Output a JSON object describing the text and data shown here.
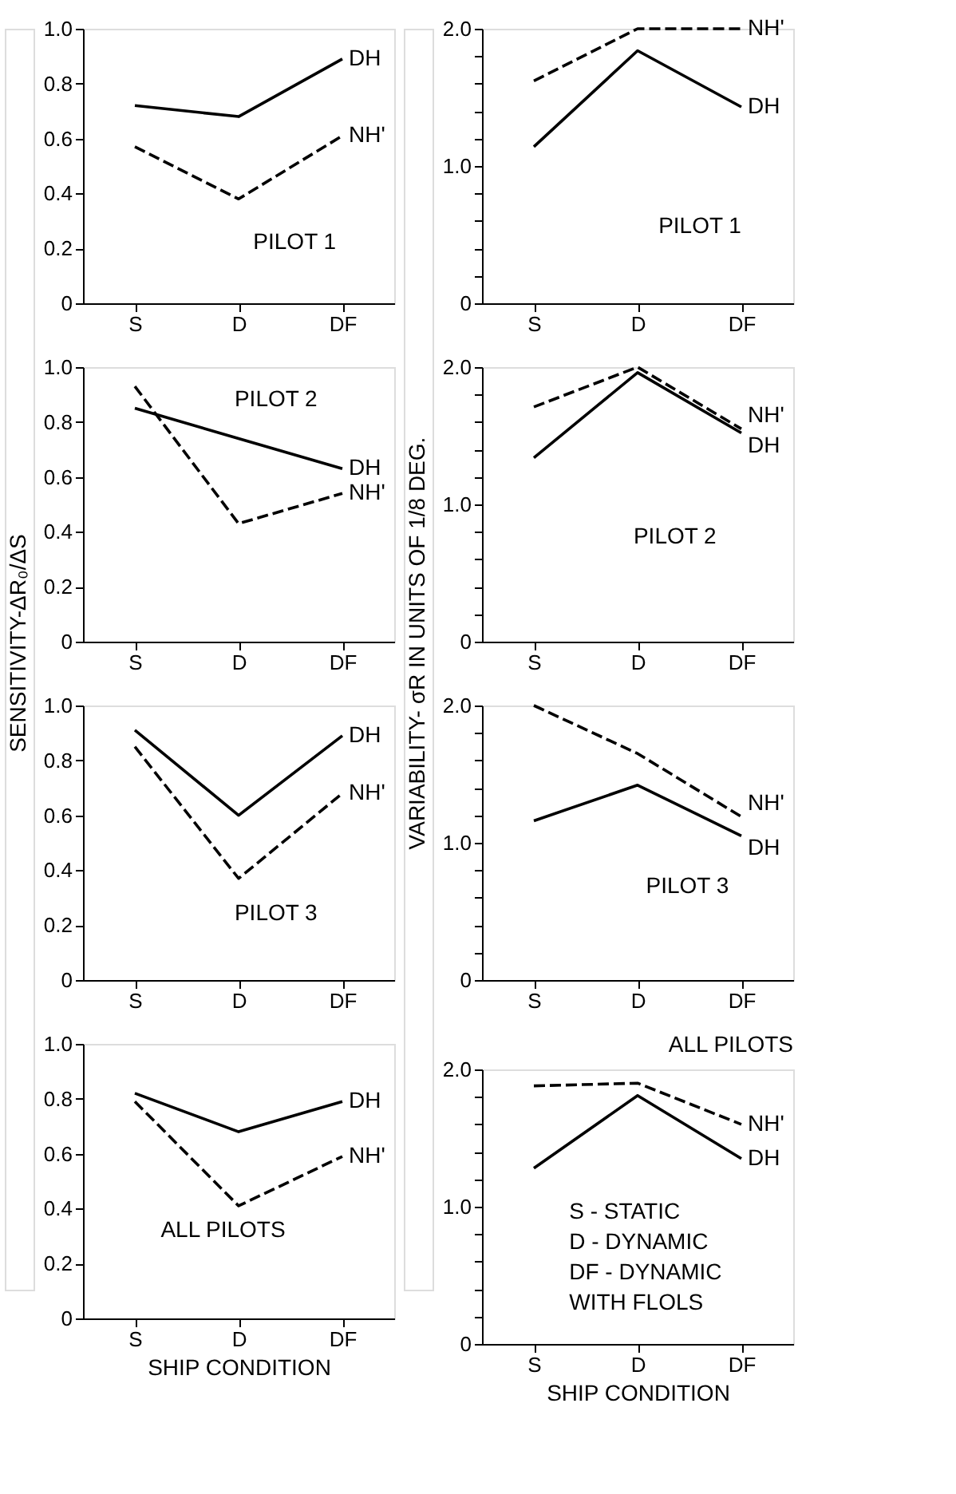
{
  "chart_data": [
    {
      "type": "line",
      "categories": [
        "S",
        "D",
        "DF"
      ],
      "ylim": [
        0,
        1.0
      ],
      "yticks": [
        0,
        0.2,
        0.4,
        0.6,
        0.8,
        {
          "value": 1.0,
          "label": "1.0"
        }
      ],
      "grid": false,
      "legend": false,
      "annotations": [
        "PILOT 1"
      ],
      "series": [
        {
          "name": "DH",
          "color": "#000000",
          "line_style": "solid",
          "values": [
            0.72,
            0.68,
            0.89
          ]
        },
        {
          "name": "NH'",
          "color": "#000000",
          "line_style": "dashed",
          "values": [
            0.57,
            0.38,
            0.61
          ]
        }
      ]
    },
    {
      "type": "line",
      "categories": [
        "S",
        "D",
        "DF"
      ],
      "ylim": [
        0,
        2.0
      ],
      "yticks": [
        0,
        {
          "value": 0.2,
          "label": null
        },
        {
          "value": 0.4,
          "label": null
        },
        {
          "value": 0.6,
          "label": null
        },
        {
          "value": 0.8,
          "label": null
        },
        {
          "value": 1.0,
          "label": "1.0"
        },
        {
          "value": 1.2,
          "label": null
        },
        {
          "value": 1.4,
          "label": null
        },
        {
          "value": 1.6,
          "label": null
        },
        {
          "value": 1.8,
          "label": null
        },
        {
          "value": 2.0,
          "label": "2.0"
        }
      ],
      "grid": false,
      "legend": false,
      "annotations": [
        "PILOT 1"
      ],
      "series": [
        {
          "name": "DH",
          "color": "#000000",
          "line_style": "solid",
          "values": [
            1.14,
            1.84,
            1.43
          ]
        },
        {
          "name": "NH'",
          "color": "#000000",
          "line_style": "dashed",
          "values": [
            1.62,
            2.0,
            2.0
          ]
        }
      ]
    },
    {
      "type": "line",
      "categories": [
        "S",
        "D",
        "DF"
      ],
      "ylabel": "SENSITIVITY-ΔR₀/ΔS",
      "ylim": [
        0,
        1.0
      ],
      "yticks": [
        0,
        0.2,
        0.4,
        0.6,
        0.8,
        {
          "value": 1.0,
          "label": "1.0"
        }
      ],
      "grid": false,
      "legend": false,
      "annotations": [
        "PILOT 2"
      ],
      "series": [
        {
          "name": "DH",
          "color": "#000000",
          "line_style": "solid",
          "values": [
            0.85,
            0.74,
            0.63
          ]
        },
        {
          "name": "NH'",
          "color": "#000000",
          "line_style": "dashed",
          "values": [
            0.93,
            0.43,
            0.54
          ]
        }
      ]
    },
    {
      "type": "line",
      "categories": [
        "S",
        "D",
        "DF"
      ],
      "ylabel": "VARIABILITY- σR IN UNITS OF 1/8 DEG.",
      "ylim": [
        0,
        2.0
      ],
      "yticks": [
        0,
        {
          "value": 0.2,
          "label": null
        },
        {
          "value": 0.4,
          "label": null
        },
        {
          "value": 0.6,
          "label": null
        },
        {
          "value": 0.8,
          "label": null
        },
        {
          "value": 1.0,
          "label": "1.0"
        },
        {
          "value": 1.2,
          "label": null
        },
        {
          "value": 1.4,
          "label": null
        },
        {
          "value": 1.6,
          "label": null
        },
        {
          "value": 1.8,
          "label": null
        },
        {
          "value": 2.0,
          "label": "2.0"
        }
      ],
      "grid": false,
      "legend": false,
      "annotations": [
        "PILOT 2"
      ],
      "series": [
        {
          "name": "DH",
          "color": "#000000",
          "line_style": "solid",
          "values": [
            1.34,
            1.96,
            1.52
          ]
        },
        {
          "name": "NH'",
          "color": "#000000",
          "line_style": "dashed",
          "values": [
            1.71,
            2.0,
            1.55
          ]
        }
      ]
    },
    {
      "type": "line",
      "categories": [
        "S",
        "D",
        "DF"
      ],
      "ylim": [
        0,
        1.0
      ],
      "yticks": [
        0,
        0.2,
        0.4,
        0.6,
        0.8,
        {
          "value": 1.0,
          "label": "1.0"
        }
      ],
      "grid": false,
      "legend": false,
      "annotations": [
        "PILOT 3"
      ],
      "series": [
        {
          "name": "DH",
          "color": "#000000",
          "line_style": "solid",
          "values": [
            0.91,
            0.6,
            0.89
          ]
        },
        {
          "name": "NH'",
          "color": "#000000",
          "line_style": "dashed",
          "values": [
            0.85,
            0.37,
            0.68
          ]
        }
      ]
    },
    {
      "type": "line",
      "categories": [
        "S",
        "D",
        "DF"
      ],
      "ylim": [
        0,
        2.0
      ],
      "yticks": [
        0,
        {
          "value": 0.2,
          "label": null
        },
        {
          "value": 0.4,
          "label": null
        },
        {
          "value": 0.6,
          "label": null
        },
        {
          "value": 0.8,
          "label": null
        },
        {
          "value": 1.0,
          "label": "1.0"
        },
        {
          "value": 1.2,
          "label": null
        },
        {
          "value": 1.4,
          "label": null
        },
        {
          "value": 1.6,
          "label": null
        },
        {
          "value": 1.8,
          "label": null
        },
        {
          "value": 2.0,
          "label": "2.0"
        }
      ],
      "grid": false,
      "legend": false,
      "annotations": [
        "PILOT 3"
      ],
      "series": [
        {
          "name": "DH",
          "color": "#000000",
          "line_style": "solid",
          "values": [
            1.16,
            1.42,
            1.05
          ]
        },
        {
          "name": "NH'",
          "color": "#000000",
          "line_style": "dashed",
          "values": [
            2.0,
            1.65,
            1.19
          ]
        }
      ]
    },
    {
      "type": "line",
      "categories": [
        "S",
        "D",
        "DF"
      ],
      "xlabel": "SHIP CONDITION",
      "ylim": [
        0,
        1.0
      ],
      "yticks": [
        0,
        0.2,
        0.4,
        0.6,
        0.8,
        {
          "value": 1.0,
          "label": "1.0"
        }
      ],
      "grid": false,
      "legend": false,
      "annotations": [
        "ALL PILOTS"
      ],
      "series": [
        {
          "name": "DH",
          "color": "#000000",
          "line_style": "solid",
          "values": [
            0.82,
            0.68,
            0.79
          ]
        },
        {
          "name": "NH'",
          "color": "#000000",
          "line_style": "dashed",
          "values": [
            0.79,
            0.41,
            0.59
          ]
        }
      ]
    },
    {
      "type": "line",
      "title": "ALL PILOTS",
      "categories": [
        "S",
        "D",
        "DF"
      ],
      "xlabel": "SHIP CONDITION",
      "ylim": [
        0,
        2.0
      ],
      "yticks": [
        0,
        {
          "value": 0.2,
          "label": null
        },
        {
          "value": 0.4,
          "label": null
        },
        {
          "value": 0.6,
          "label": null
        },
        {
          "value": 0.8,
          "label": null
        },
        {
          "value": 1.0,
          "label": "1.0"
        },
        {
          "value": 1.2,
          "label": null
        },
        {
          "value": 1.4,
          "label": null
        },
        {
          "value": 1.6,
          "label": null
        },
        {
          "value": 1.8,
          "label": null
        },
        {
          "value": 2.0,
          "label": "2.0"
        }
      ],
      "grid": false,
      "legend": false,
      "annotations": [
        "S - STATIC\nD - DYNAMIC\nDF - DYNAMIC\n     WITH FLOLS"
      ],
      "series": [
        {
          "name": "DH",
          "color": "#000000",
          "line_style": "solid",
          "values": [
            1.28,
            1.81,
            1.35
          ]
        },
        {
          "name": "NH'",
          "color": "#000000",
          "line_style": "dashed",
          "values": [
            1.88,
            1.9,
            1.6
          ]
        }
      ]
    }
  ]
}
